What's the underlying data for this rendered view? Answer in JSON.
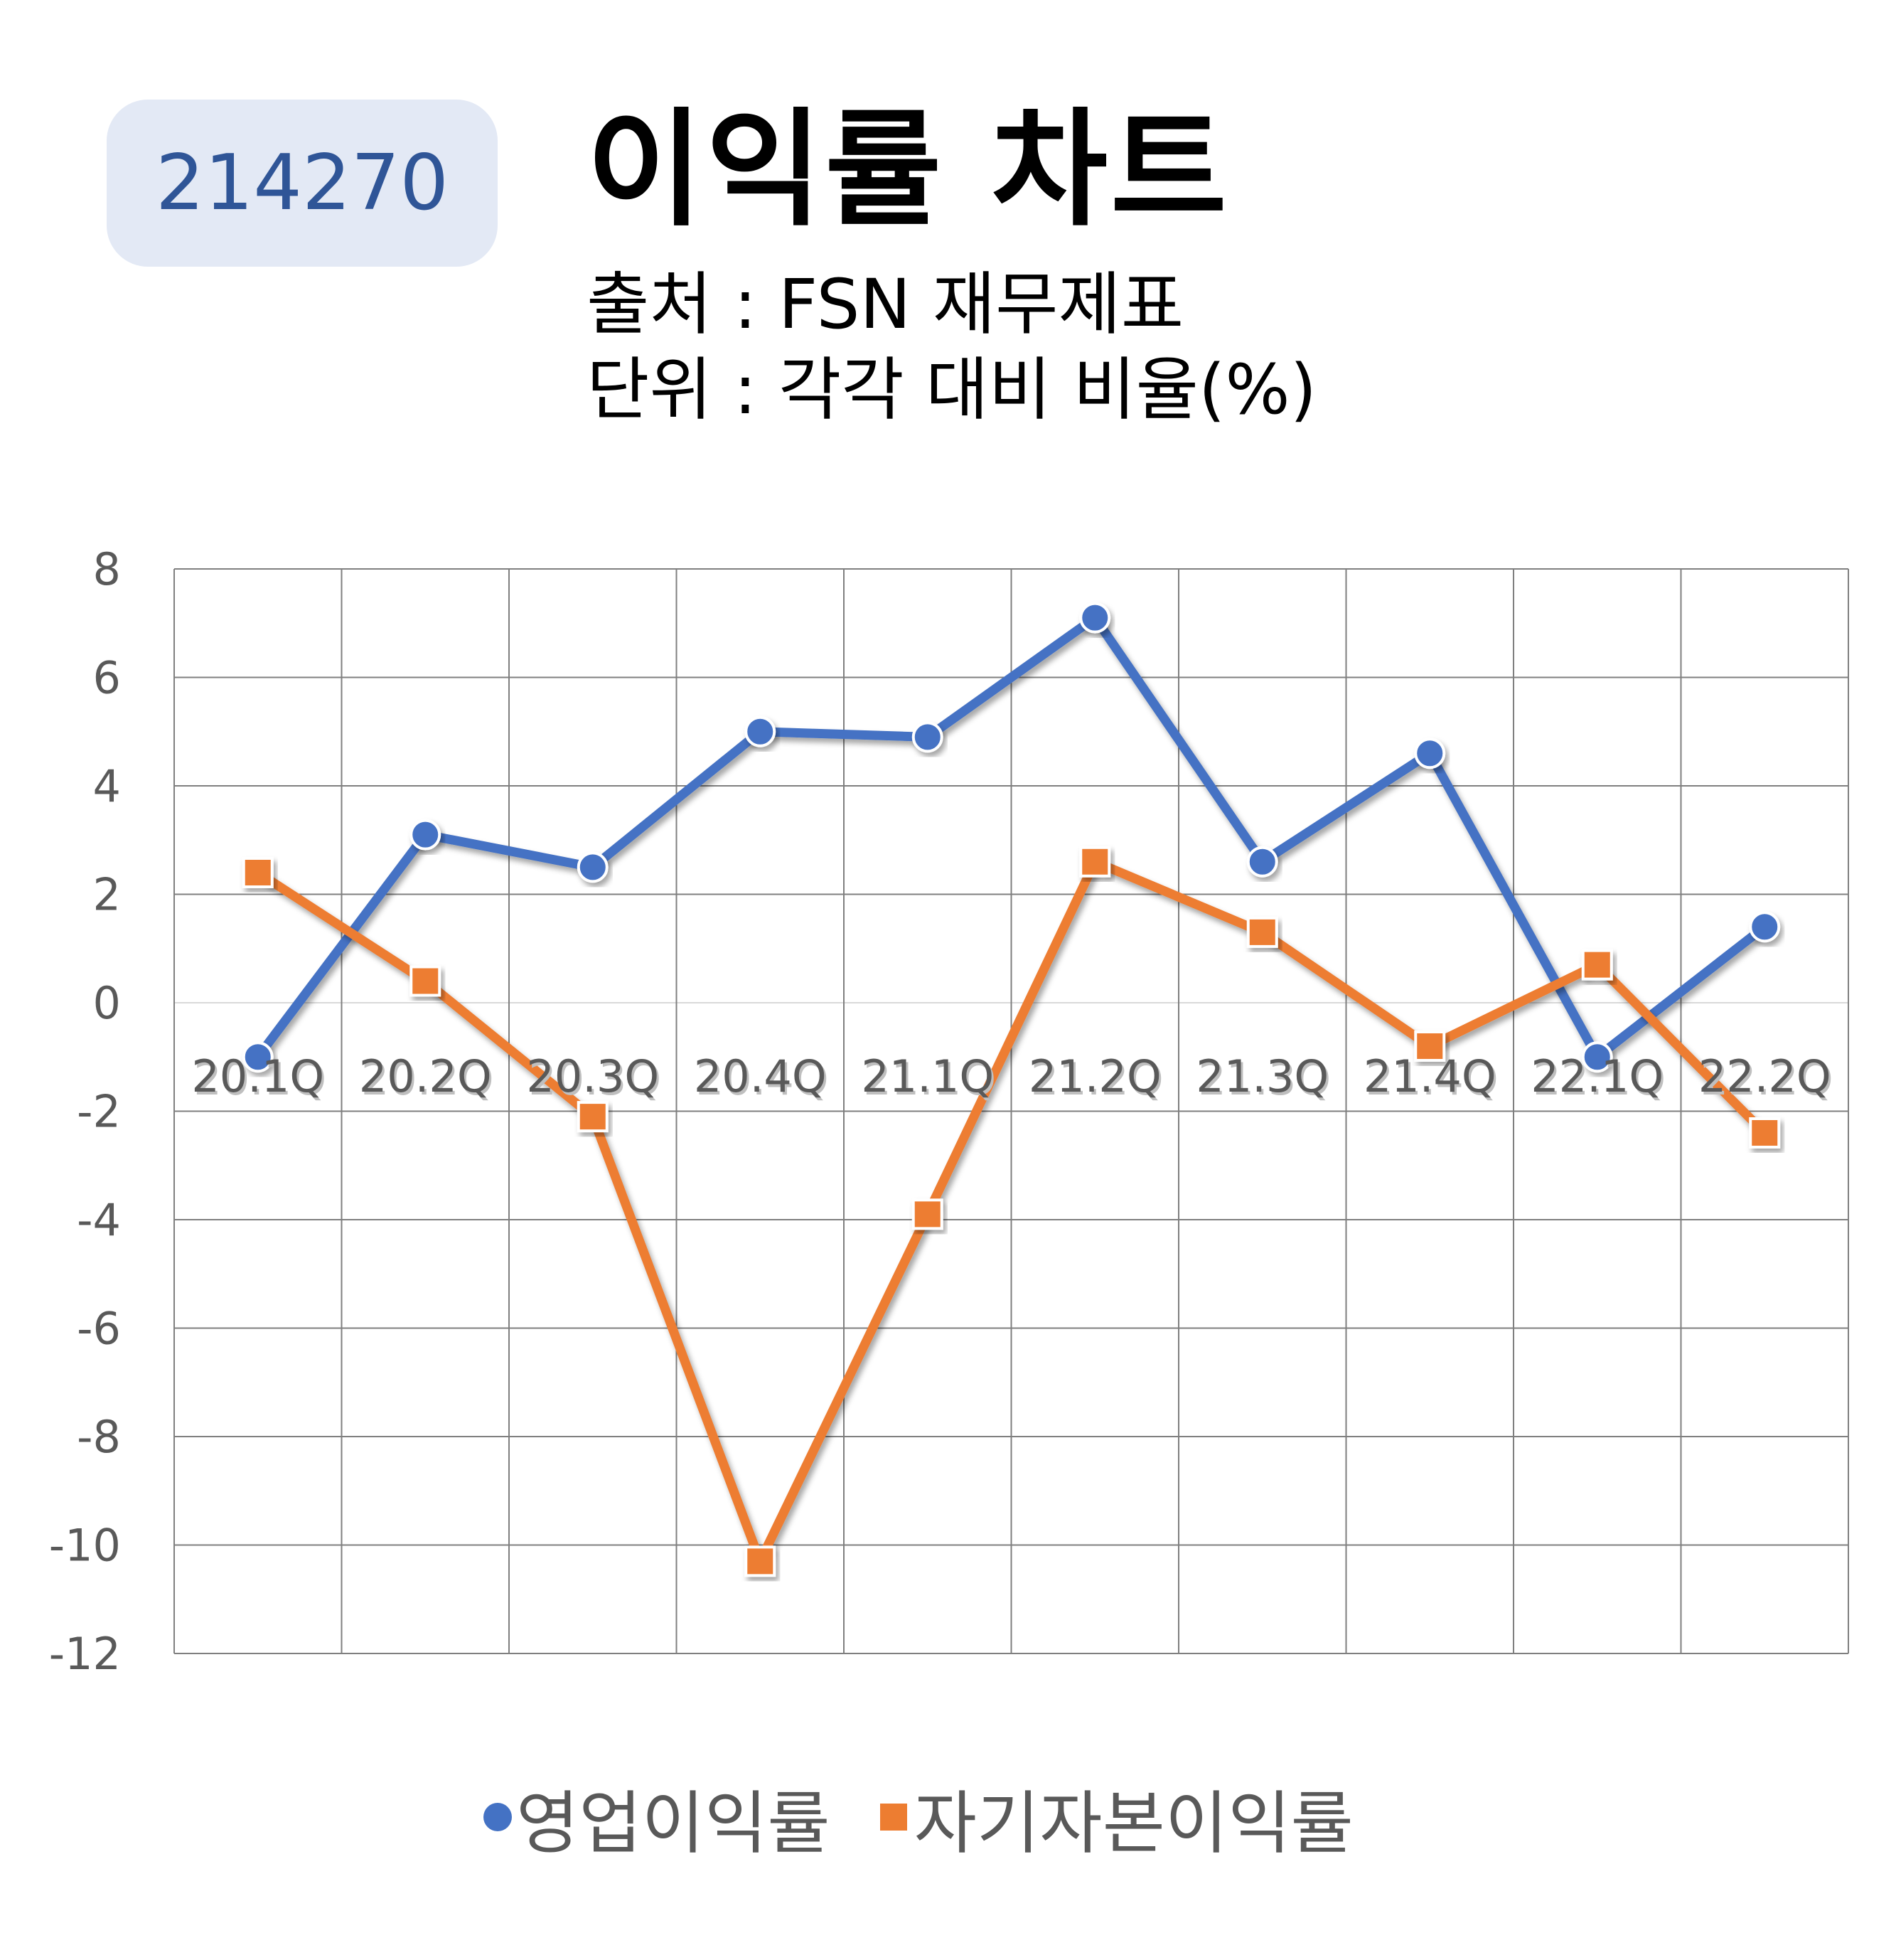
{
  "header": {
    "code": "214270",
    "title": "이익률 차트",
    "source": "출처 : FSN 재무제표",
    "unit": "단위 : 각각 대비 비율(%)"
  },
  "chart_data": {
    "type": "line",
    "categories": [
      "20.1Q",
      "20.2Q",
      "20.3Q",
      "20.4Q",
      "21.1Q",
      "21.2Q",
      "21.3Q",
      "21.4Q",
      "22.1Q",
      "22.2Q"
    ],
    "series": [
      {
        "name": "영업이익률",
        "color": "#4472c4",
        "marker": "circle",
        "values": [
          -1.0,
          3.1,
          2.5,
          5.0,
          4.9,
          7.1,
          2.6,
          4.6,
          -1.0,
          1.4
        ]
      },
      {
        "name": "자기자본이익률",
        "color": "#ed7d31",
        "marker": "square",
        "values": [
          2.4,
          0.4,
          -2.1,
          -10.3,
          -3.9,
          2.6,
          1.3,
          -0.8,
          0.7,
          -2.4
        ]
      }
    ],
    "yticks": [
      "8",
      "6",
      "4",
      "2",
      "0",
      "-2",
      "-4",
      "-6",
      "-8",
      "-10",
      "-12"
    ],
    "ylim": [
      -12,
      8
    ],
    "grid": true,
    "legend_position": "bottom"
  }
}
